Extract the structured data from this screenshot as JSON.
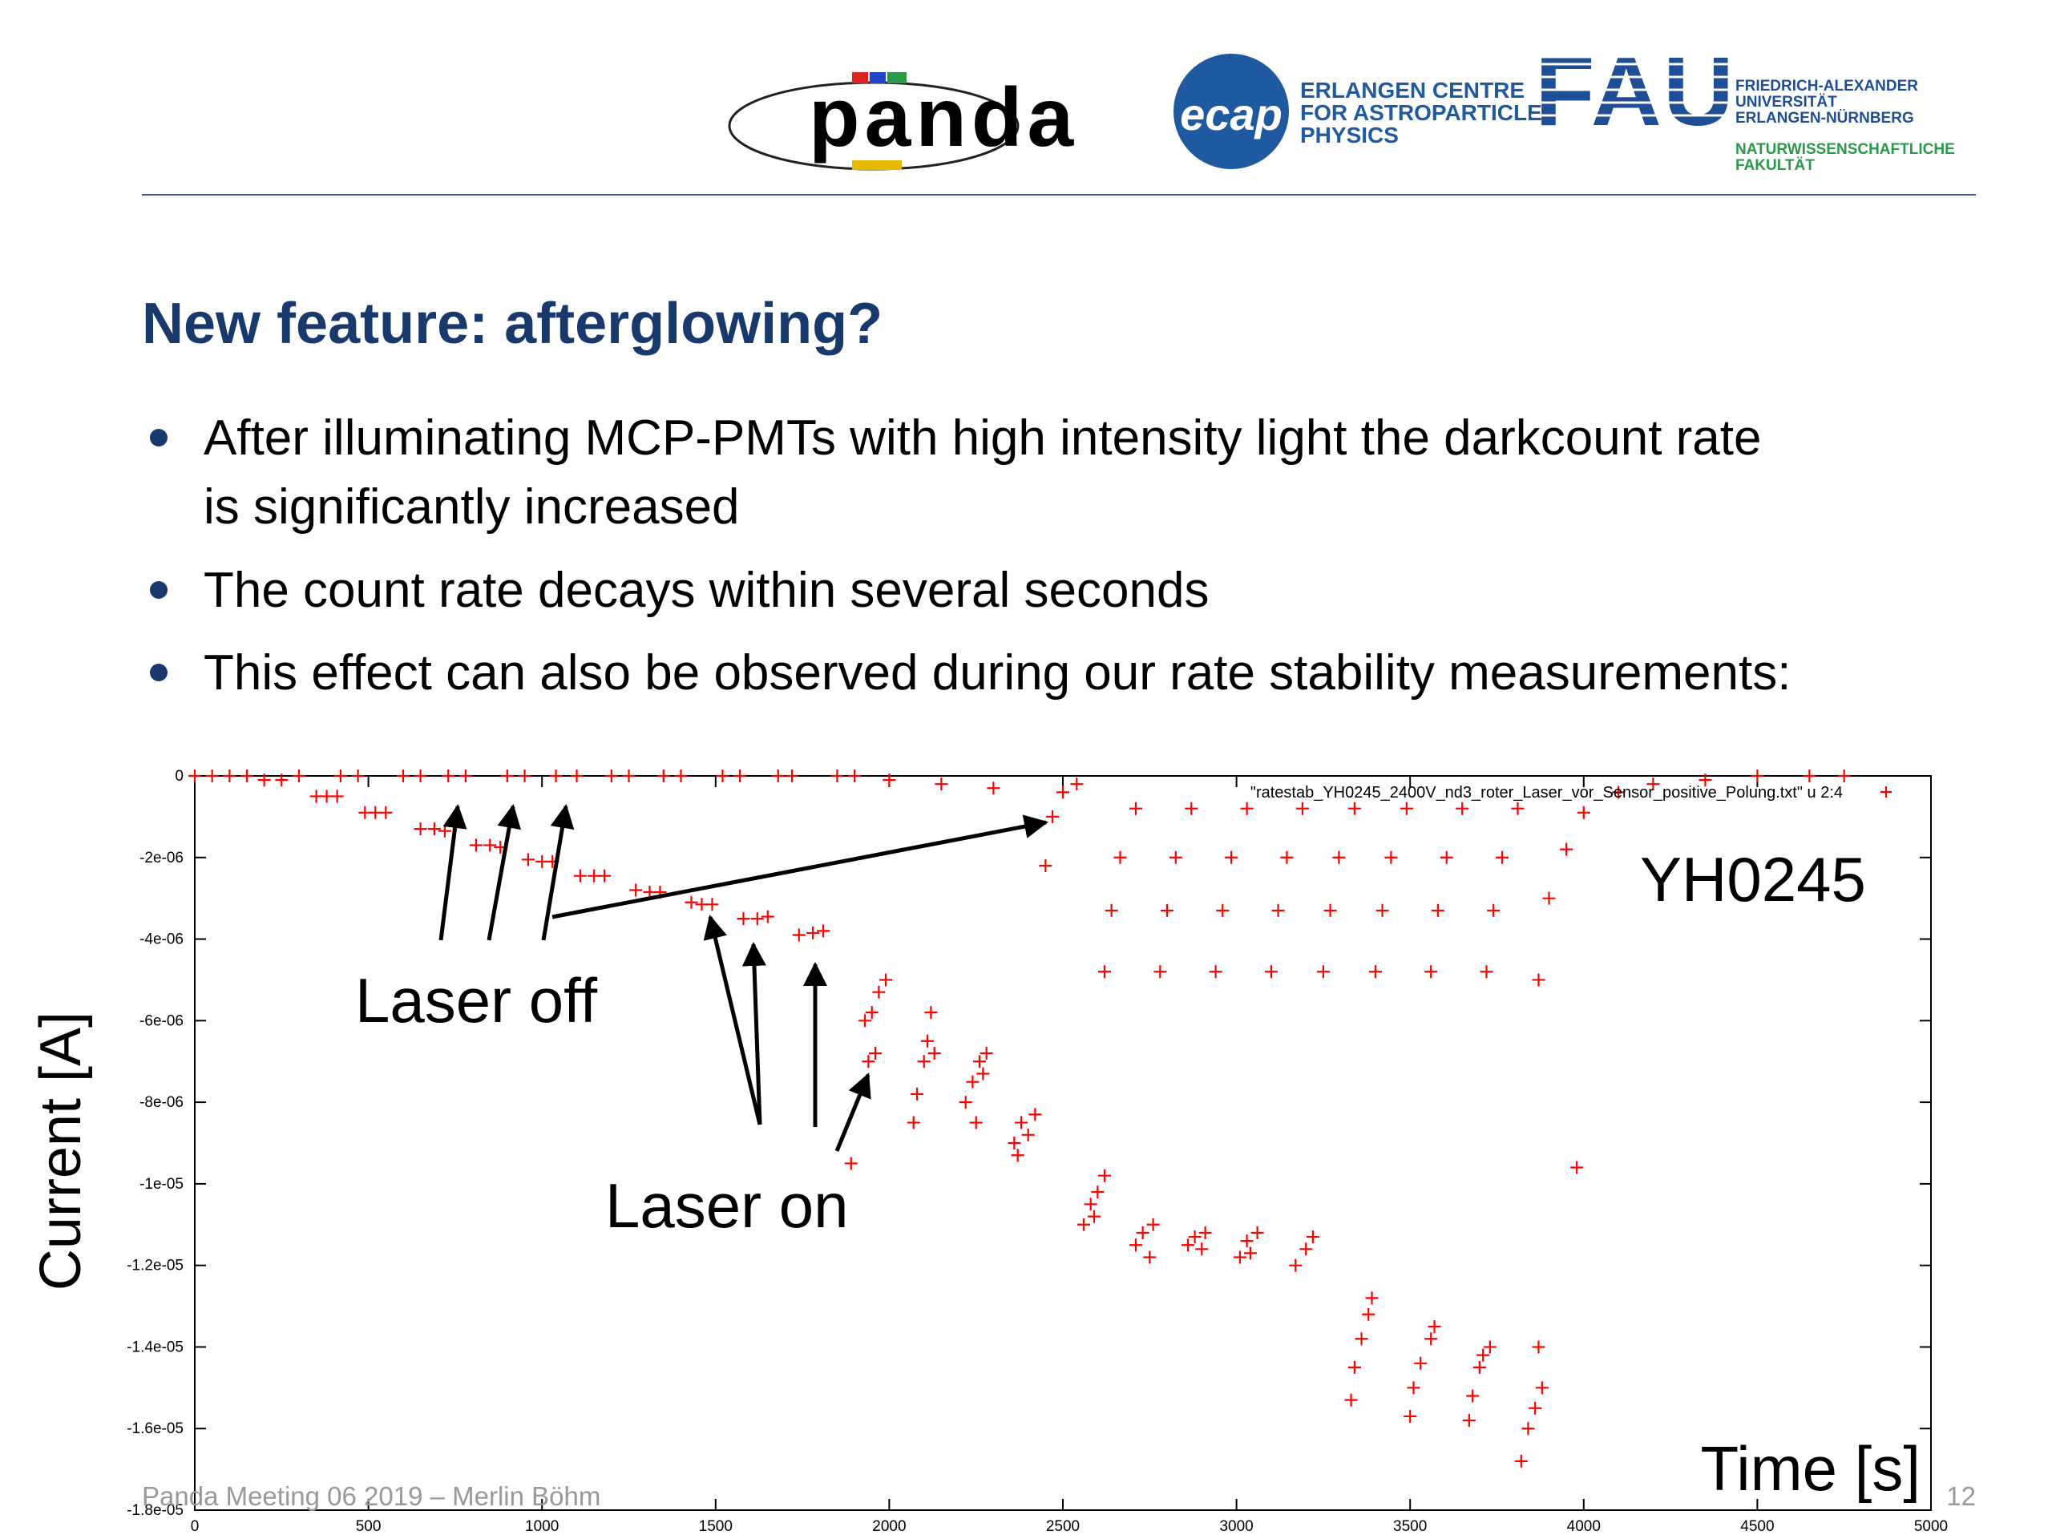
{
  "slide": {
    "logos": {
      "panda": "panda",
      "ecap": "ecap",
      "ecap_text": [
        "ERLANGEN CENTRE",
        "FOR ASTROPARTICLE",
        "PHYSICS"
      ],
      "fau": "FAU",
      "fau_text": [
        "FRIEDRICH-ALEXANDER",
        "UNIVERSITÄT",
        "ERLANGEN-NÜRNBERG"
      ],
      "faculty_text": [
        "NATURWISSENSCHAFTLICHE",
        "FAKULTÄT"
      ]
    },
    "title": "New feature: afterglowing?",
    "bullets": [
      [
        "After illuminating MCP-PMTs with high intensity light the darkcount rate",
        "is significantly increased"
      ],
      [
        "The count rate decays within several seconds"
      ],
      [
        "This effect can also be observed during our rate stability measurements:"
      ]
    ],
    "footer": "Panda Meeting 06 2019 – Merlin Böhm",
    "page_number": 12
  },
  "chart_data": {
    "type": "scatter",
    "xlabel": "Time [s]",
    "ylabel": "Current [A]",
    "annotations": [
      "YH0245",
      "Laser off",
      "Laser on"
    ],
    "xlim": [
      0,
      5000
    ],
    "xticks": [
      0,
      500,
      1000,
      1500,
      2000,
      2500,
      3000,
      3500,
      4000,
      4500,
      5000
    ],
    "ylim": [
      -1.8e-05,
      0
    ],
    "yticks": [
      {
        "value": -1.8e-05,
        "label": "-1.8e-05"
      },
      {
        "value": -1.6e-05,
        "label": "-1.6e-05"
      },
      {
        "value": -1.4e-05,
        "label": "-1.4e-05"
      },
      {
        "value": -1.2e-05,
        "label": "-1.2e-05"
      },
      {
        "value": -1e-05,
        "label": "-1e-05"
      },
      {
        "value": -8e-06,
        "label": "-8e-06"
      },
      {
        "value": -6e-06,
        "label": "-6e-06"
      },
      {
        "value": -4e-06,
        "label": "-4e-06"
      },
      {
        "value": -2e-06,
        "label": "-2e-06"
      },
      0
    ],
    "grid": false,
    "legend": "upper right",
    "series": [
      {
        "name": "\"ratestab_YH0245_2400V_nd3_roter_Laser_vor_Sensor_positive_Polung.txt\" u 2:4",
        "color": "#ff0000",
        "x": [
          0,
          50,
          100,
          150,
          200,
          250,
          300,
          420,
          470,
          600,
          650,
          730,
          780,
          900,
          950,
          1040,
          1100,
          1200,
          1250,
          1350,
          1400,
          1520,
          1570,
          1680,
          1720,
          1850,
          1900,
          2000,
          2150,
          2300,
          350,
          380,
          410,
          490,
          520,
          550,
          650,
          690,
          720,
          810,
          850,
          880,
          960,
          1000,
          1030,
          1110,
          1150,
          1180,
          1270,
          1310,
          1340,
          1430,
          1460,
          1490,
          1580,
          1620,
          1650,
          1740,
          1780,
          1810,
          1890,
          1930,
          1940,
          1950,
          1960,
          1970,
          1990,
          2070,
          2080,
          2100,
          2110,
          2120,
          2130,
          2220,
          2240,
          2250,
          2260,
          2270,
          2280,
          2360,
          2370,
          2380,
          2400,
          2420,
          2560,
          2580,
          2590,
          2600,
          2620,
          2710,
          2730,
          2750,
          2760,
          2860,
          2880,
          2900,
          2910,
          3010,
          3030,
          3040,
          3060,
          3170,
          3200,
          3220,
          3330,
          3340,
          3360,
          3380,
          3390,
          3500,
          3510,
          3530,
          3560,
          3570,
          3670,
          3680,
          3700,
          3710,
          3730,
          3820,
          3840,
          3860,
          3870,
          3880,
          3980,
          2450,
          2470,
          2500,
          2540,
          2620,
          2640,
          2665,
          2710,
          2780,
          2800,
          2825,
          2870,
          2940,
          2960,
          2985,
          3030,
          3100,
          3120,
          3145,
          3190,
          3250,
          3270,
          3295,
          3340,
          3400,
          3420,
          3445,
          3490,
          3560,
          3580,
          3605,
          3650,
          3720,
          3740,
          3765,
          3810,
          3870,
          3900,
          3950,
          4000,
          4100,
          4200,
          4350,
          4500,
          4650,
          4750
        ],
        "values": [
          0,
          0,
          0,
          0,
          -1e-07,
          -1e-07,
          0,
          0,
          0,
          0,
          0,
          0,
          0,
          0,
          0,
          0,
          0,
          0,
          0,
          0,
          0,
          0,
          0,
          0,
          0,
          0,
          0,
          -1e-07,
          -2e-07,
          -3e-07,
          -5e-07,
          -5e-07,
          -5e-07,
          -9e-07,
          -9e-07,
          -9e-07,
          -1.3e-06,
          -1.3e-06,
          -1.35e-06,
          -1.7e-06,
          -1.7e-06,
          -1.75e-06,
          -2.05e-06,
          -2.1e-06,
          -2.1e-06,
          -2.45e-06,
          -2.45e-06,
          -2.45e-06,
          -2.8e-06,
          -2.85e-06,
          -2.85e-06,
          -3.1e-06,
          -3.15e-06,
          -3.15e-06,
          -3.5e-06,
          -3.5e-06,
          -3.45e-06,
          -3.9e-06,
          -3.85e-06,
          -3.8e-06,
          -9.5e-06,
          -6e-06,
          -7e-06,
          -5.8e-06,
          -6.8e-06,
          -5.3e-06,
          -5e-06,
          -8.5e-06,
          -7.8e-06,
          -7e-06,
          -6.5e-06,
          -5.8e-06,
          -6.8e-06,
          -8e-06,
          -7.5e-06,
          -8.5e-06,
          -7e-06,
          -7.3e-06,
          -6.8e-06,
          -9e-06,
          -9.3e-06,
          -8.5e-06,
          -8.8e-06,
          -8.3e-06,
          -1.1e-05,
          -1.05e-05,
          -1.08e-05,
          -1.02e-05,
          -9.8e-06,
          -1.15e-05,
          -1.12e-05,
          -1.18e-05,
          -1.1e-05,
          -1.15e-05,
          -1.13e-05,
          -1.16e-05,
          -1.12e-05,
          -1.18e-05,
          -1.14e-05,
          -1.17e-05,
          -1.12e-05,
          -1.2e-05,
          -1.16e-05,
          -1.13e-05,
          -1.53e-05,
          -1.45e-05,
          -1.38e-05,
          -1.32e-05,
          -1.28e-05,
          -1.57e-05,
          -1.5e-05,
          -1.44e-05,
          -1.38e-05,
          -1.35e-05,
          -1.58e-05,
          -1.52e-05,
          -1.45e-05,
          -1.42e-05,
          -1.4e-05,
          -1.68e-05,
          -1.6e-05,
          -1.55e-05,
          -1.4e-05,
          -1.5e-05,
          -9.6e-06,
          -2.2e-06,
          -1e-06,
          -4e-07,
          -2e-07,
          -4.8e-06,
          -3.3e-06,
          -2e-06,
          -8e-07,
          -4.8e-06,
          -3.3e-06,
          -2e-06,
          -8e-07,
          -4.8e-06,
          -3.3e-06,
          -2e-06,
          -8e-07,
          -4.8e-06,
          -3.3e-06,
          -2e-06,
          -8e-07,
          -4.8e-06,
          -3.3e-06,
          -2e-06,
          -8e-07,
          -4.8e-06,
          -3.3e-06,
          -2e-06,
          -8e-07,
          -4.8e-06,
          -3.3e-06,
          -2e-06,
          -8e-07,
          -4.8e-06,
          -3.3e-06,
          -2e-06,
          -8e-07,
          -5e-06,
          -3e-06,
          -1.8e-06,
          -9e-07,
          -4e-07,
          -2e-07,
          -1e-07,
          0,
          0,
          0
        ]
      }
    ]
  }
}
